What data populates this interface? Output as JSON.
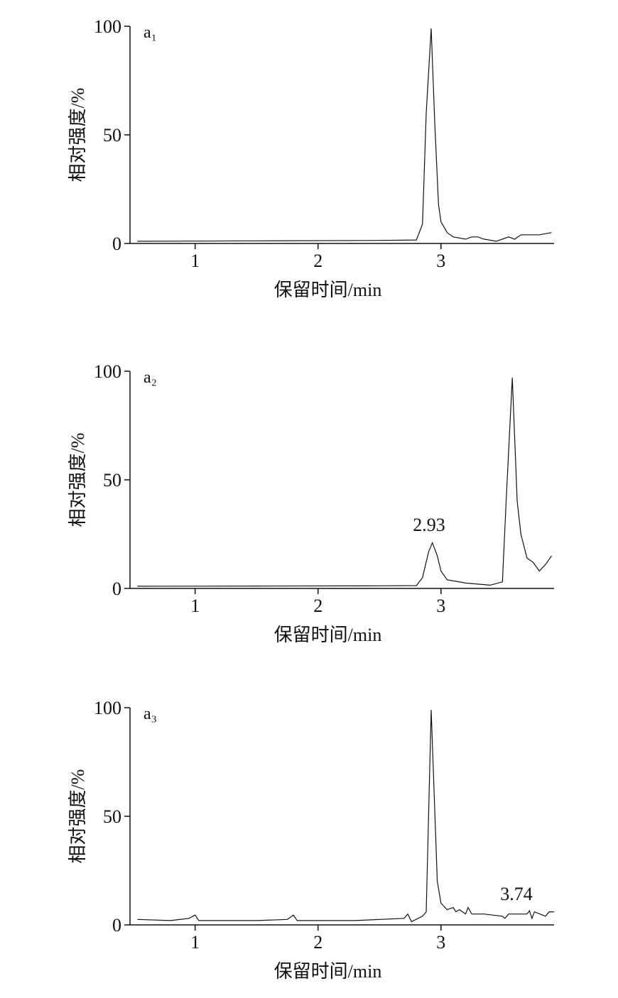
{
  "chart_data": [
    {
      "type": "line",
      "panel_label": "a₁",
      "x_label": "保留时间/min",
      "y_label": "相对强度/%",
      "xlim": [
        0.47,
        3.92
      ],
      "ylim": [
        0,
        100
      ],
      "xticks": [
        1,
        2,
        3
      ],
      "yticks": [
        0,
        50,
        100
      ],
      "series": [
        {
          "color": "#111111",
          "x": [
            0.53,
            1.5,
            2.5,
            2.8,
            2.85,
            2.88,
            2.92,
            2.95,
            2.98,
            3.0,
            3.05,
            3.1,
            3.2,
            3.25,
            3.3,
            3.35,
            3.45,
            3.55,
            3.6,
            3.65,
            3.8,
            3.9
          ],
          "values": [
            1,
            1.2,
            1.4,
            1.6,
            9,
            60,
            99,
            55,
            18,
            10,
            5,
            3,
            2,
            3,
            3,
            2,
            1,
            3,
            2,
            4,
            4,
            5
          ]
        }
      ]
    },
    {
      "type": "line",
      "panel_label": "a₂",
      "x_label": "保留时间/min",
      "y_label": "相对强度/%",
      "xlim": [
        0.47,
        3.92
      ],
      "ylim": [
        0,
        100
      ],
      "xticks": [
        1,
        2,
        3
      ],
      "yticks": [
        0,
        50,
        100
      ],
      "annotations": [
        "2.93"
      ],
      "series": [
        {
          "color": "#111111",
          "x": [
            0.53,
            1.5,
            2.5,
            2.8,
            2.85,
            2.9,
            2.93,
            2.97,
            3.0,
            3.05,
            3.2,
            3.4,
            3.5,
            3.53,
            3.58,
            3.62,
            3.65,
            3.7,
            3.75,
            3.8,
            3.85,
            3.9
          ],
          "values": [
            1,
            1.1,
            1.2,
            1.3,
            5,
            17,
            21,
            15,
            8,
            4,
            2.5,
            1.5,
            3,
            40,
            97,
            40,
            25,
            14,
            12,
            8,
            11,
            15
          ]
        }
      ]
    },
    {
      "type": "line",
      "panel_label": "a₃",
      "x_label": "保留时间/min",
      "y_label": "相对强度/%",
      "xlim": [
        0.47,
        3.92
      ],
      "ylim": [
        0,
        100
      ],
      "xticks": [
        1,
        2,
        3
      ],
      "yticks": [
        0,
        50,
        100
      ],
      "annotations": [
        "3.74"
      ],
      "series": [
        {
          "color": "#111111",
          "x": [
            0.53,
            0.8,
            0.95,
            1.0,
            1.03,
            1.5,
            1.75,
            1.8,
            1.83,
            2.3,
            2.7,
            2.73,
            2.76,
            2.85,
            2.88,
            2.92,
            2.97,
            3.0,
            3.05,
            3.1,
            3.12,
            3.15,
            3.2,
            3.22,
            3.25,
            3.35,
            3.5,
            3.52,
            3.55,
            3.7,
            3.72,
            3.74,
            3.76,
            3.85,
            3.88,
            3.92
          ],
          "values": [
            2.5,
            2,
            3,
            4.5,
            2,
            2,
            2.5,
            4.5,
            2,
            2,
            3,
            5,
            1.5,
            4,
            6,
            99,
            20,
            10,
            7,
            8,
            6,
            7,
            5,
            8,
            5,
            5,
            4,
            3,
            5,
            5,
            6.5,
            3,
            6,
            4,
            6,
            6
          ]
        }
      ]
    }
  ]
}
